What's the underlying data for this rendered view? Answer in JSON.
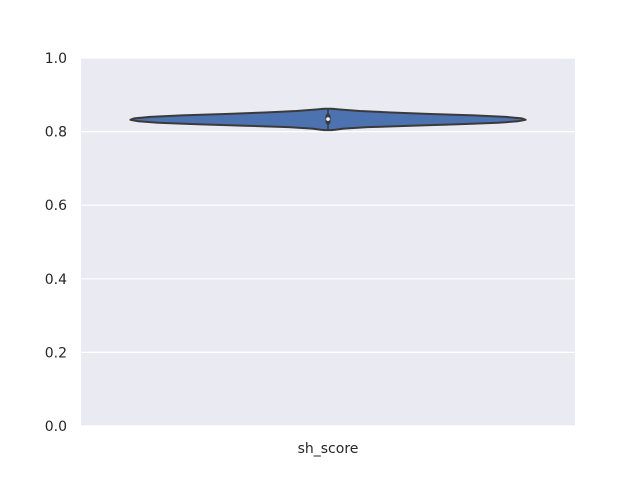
{
  "chart_data": {
    "type": "violin",
    "title": "",
    "xlabel": "",
    "ylabel": "",
    "categories": [
      "sh_score"
    ],
    "ylim": [
      0.0,
      1.0
    ],
    "yticks": [
      0.0,
      0.2,
      0.4,
      0.6,
      0.8,
      1.0
    ],
    "ytick_labels": [
      "0.0",
      "0.2",
      "0.4",
      "0.6",
      "0.8",
      "1.0"
    ],
    "grid": true,
    "violins": [
      {
        "category": "sh_score",
        "min": 0.804,
        "max": 0.862,
        "quartiles": [
          0.826,
          0.834,
          0.842
        ],
        "median": 0.834,
        "density": [
          [
            0.804,
            0.02
          ],
          [
            0.808,
            0.08
          ],
          [
            0.812,
            0.2
          ],
          [
            0.816,
            0.42
          ],
          [
            0.82,
            0.66
          ],
          [
            0.824,
            0.86
          ],
          [
            0.828,
            0.96
          ],
          [
            0.832,
            1.0
          ],
          [
            0.836,
            0.98
          ],
          [
            0.84,
            0.9
          ],
          [
            0.844,
            0.74
          ],
          [
            0.848,
            0.52
          ],
          [
            0.852,
            0.32
          ],
          [
            0.856,
            0.16
          ],
          [
            0.86,
            0.06
          ],
          [
            0.862,
            0.02
          ]
        ]
      }
    ],
    "colors": {
      "violin_fill": "#4c72b0",
      "violin_edge": "#3a3a3a",
      "plot_background": "#eaeaf2",
      "grid": "#ffffff",
      "box": "#3a3a3a",
      "median": "#ffffff"
    }
  }
}
